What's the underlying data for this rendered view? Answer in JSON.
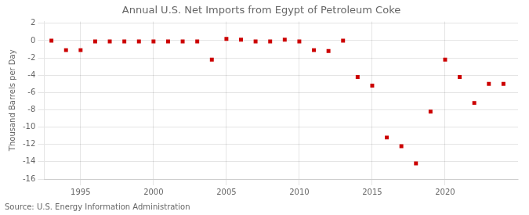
{
  "chart_data": {
    "type": "scatter",
    "title": "Annual U.S. Net Imports from Egypt of Petroleum Coke",
    "ylabel": "Thousand Barrels per Day",
    "source": "Source: U.S. Energy Information Administration",
    "x": [
      1993,
      1994,
      1995,
      1996,
      1997,
      1998,
      1999,
      2000,
      2001,
      2002,
      2003,
      2004,
      2005,
      2006,
      2007,
      2008,
      2009,
      2010,
      2011,
      2012,
      2013,
      2014,
      2015,
      2016,
      2017,
      2018,
      2019,
      2020,
      2021,
      2022,
      2023,
      2024
    ],
    "values": [
      0.0,
      -1.1,
      -1.1,
      -0.1,
      -0.1,
      -0.1,
      -0.1,
      -0.1,
      -0.1,
      -0.1,
      -0.1,
      -2.2,
      0.2,
      0.1,
      -0.1,
      -0.1,
      0.1,
      -0.1,
      -1.1,
      -1.2,
      0.0,
      -4.2,
      -5.2,
      -11.2,
      -12.2,
      -14.2,
      -8.2,
      -2.2,
      -4.2,
      -7.2,
      -5.0,
      -5.0
    ],
    "color": "#cc0000",
    "marker": "square",
    "xlim": [
      1992.5,
      2025
    ],
    "xticks": [
      1995,
      2000,
      2005,
      2010,
      2015,
      2020
    ],
    "ylim": [
      -16,
      2.2
    ],
    "yticks": [
      2,
      0,
      -2,
      -4,
      -6,
      -8,
      -10,
      -12,
      -14,
      -16
    ],
    "grid": true
  }
}
